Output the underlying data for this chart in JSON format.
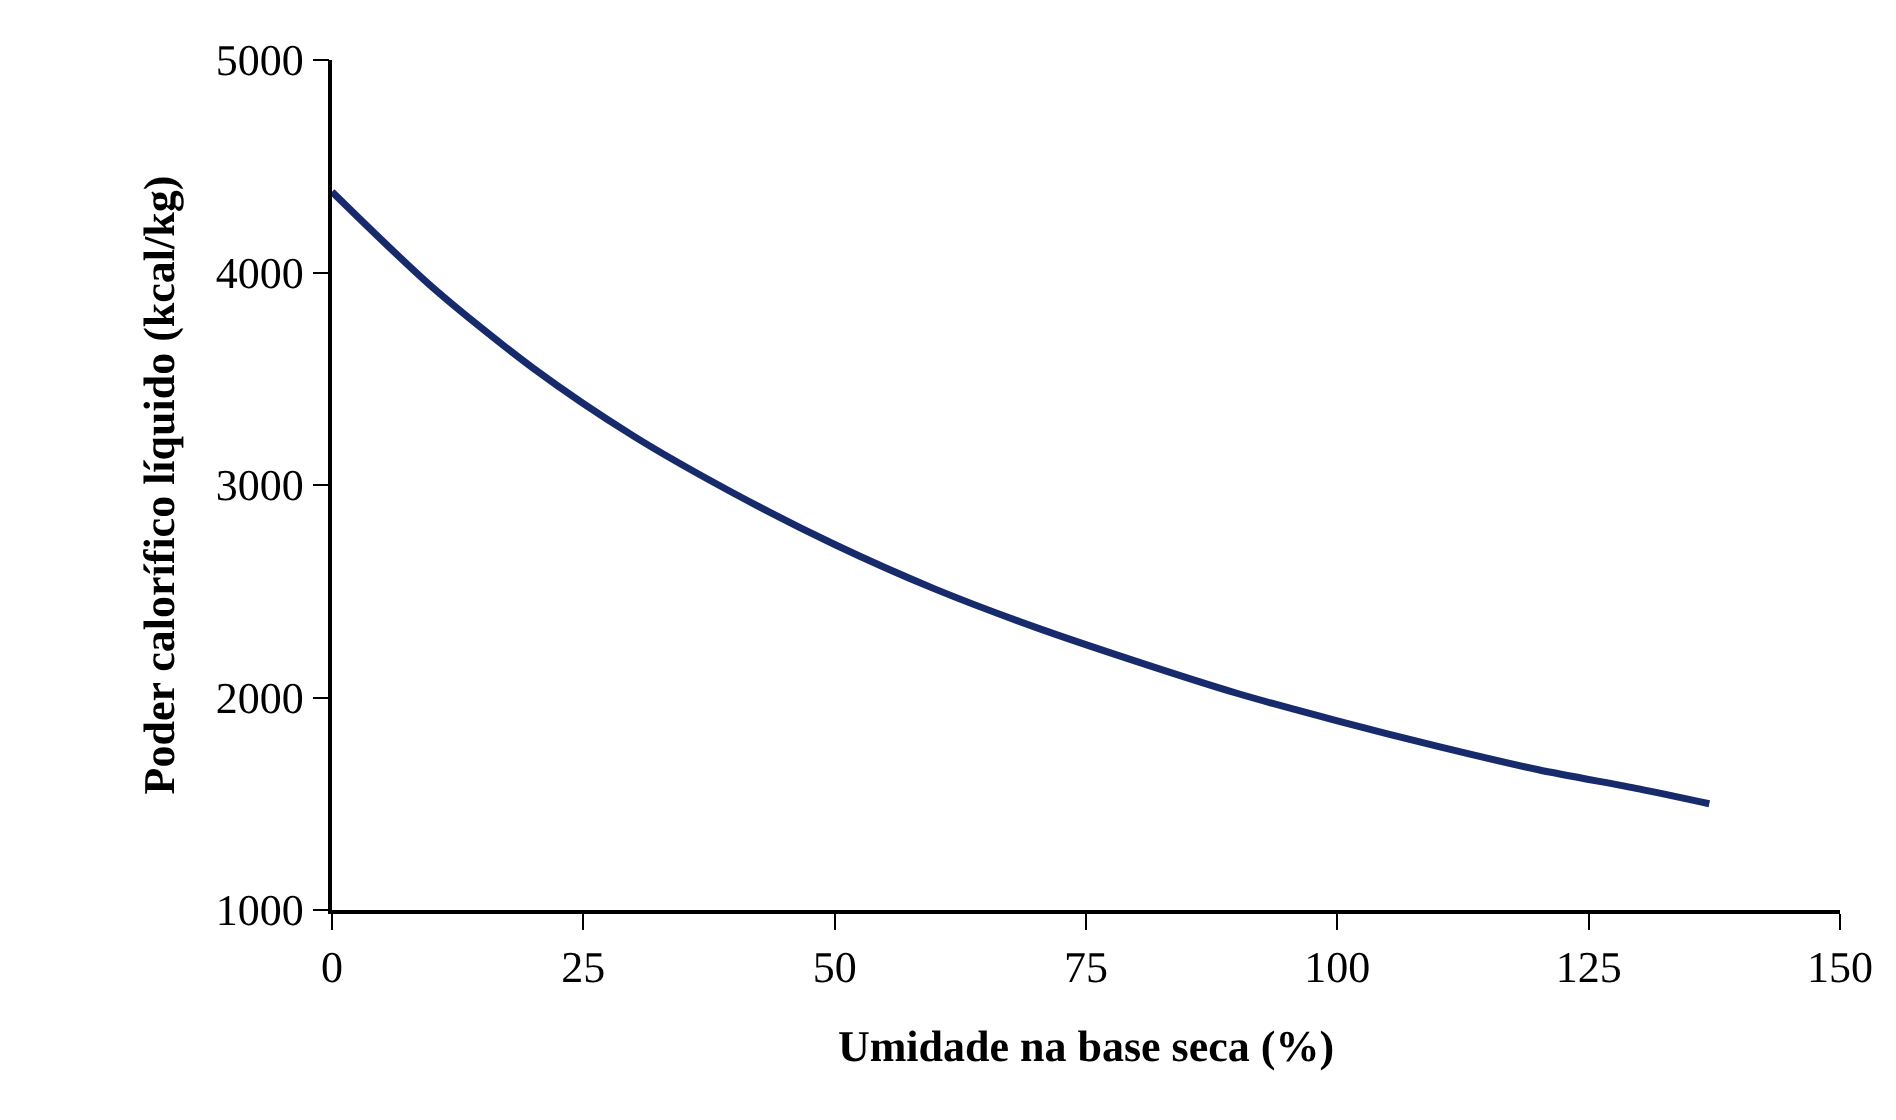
{
  "chart_data": {
    "type": "line",
    "xlabel": "Umidade na base seca (%)",
    "ylabel": "Poder calorífico líquido (kcal/kg)",
    "x": [
      0,
      10,
      20,
      30,
      40,
      50,
      60,
      70,
      80,
      90,
      100,
      110,
      120,
      130,
      137
    ],
    "series": [
      {
        "color": "#172a6b",
        "values": [
          4380,
          3930,
          3550,
          3230,
          2960,
          2720,
          2510,
          2330,
          2170,
          2020,
          1890,
          1770,
          1660,
          1570,
          1500
        ]
      }
    ],
    "xlim": [
      0,
      150
    ],
    "xticks": [
      0,
      25,
      50,
      75,
      100,
      125,
      150
    ],
    "ylim": [
      1000,
      5000
    ],
    "yticks": [
      1000,
      2000,
      3000,
      4000,
      5000
    ],
    "grid": false,
    "marker": "none",
    "line_style": "solid"
  }
}
